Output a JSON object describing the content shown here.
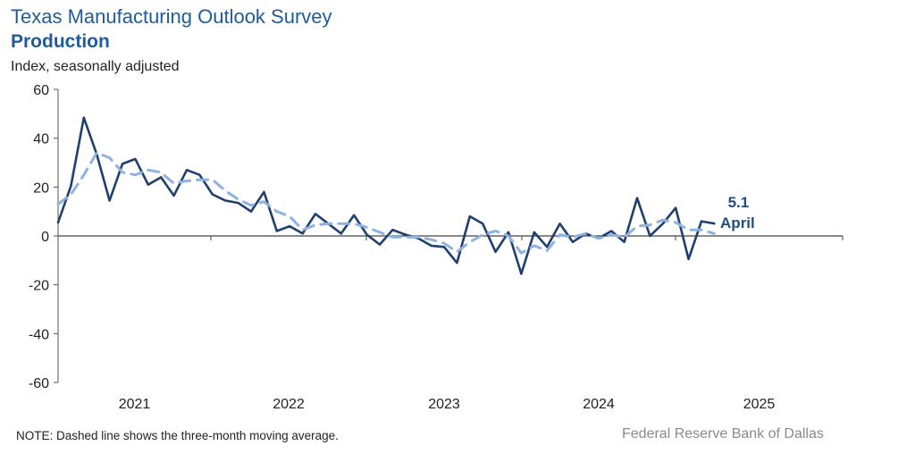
{
  "header": {
    "title": "Texas Manufacturing Outlook Survey",
    "subtitle": "Production",
    "ylabel": "Index, seasonally adjusted"
  },
  "footer": {
    "note": "NOTE: Dashed line shows the three-month  moving average.",
    "source": "Federal Reserve Bank of Dallas"
  },
  "chart_data": {
    "type": "line",
    "title": "Texas Manufacturing Outlook Survey — Production",
    "ylabel": "Index, seasonally adjusted",
    "xlabel": "",
    "ylim": [
      -60,
      60
    ],
    "yticks": [
      60,
      40,
      20,
      0,
      -20,
      -40,
      -60
    ],
    "xtick_labels": [
      "2021",
      "2022",
      "2023",
      "2024",
      "2025"
    ],
    "x_start": "Dec 2020",
    "x_end": "Apr 2025",
    "grid": false,
    "annotations": [
      {
        "text": "5.1",
        "target": "last-point"
      },
      {
        "text": "April",
        "target": "last-point"
      }
    ],
    "series": [
      {
        "name": "Production index",
        "style": "solid",
        "color": "#1f3f6e",
        "values": [
          5.5,
          20.5,
          48.4,
          33.5,
          14.5,
          29.5,
          31.5,
          21.0,
          24.0,
          16.5,
          27.0,
          25.0,
          17.0,
          14.5,
          13.5,
          10.0,
          18.0,
          2.0,
          4.0,
          1.0,
          9.0,
          5.0,
          1.0,
          8.5,
          0.5,
          -3.5,
          2.5,
          0.5,
          -1.0,
          -4.0,
          -4.5,
          -11.0,
          8.0,
          5.0,
          -6.5,
          1.5,
          -15.5,
          1.5,
          -4.5,
          5.0,
          -2.5,
          1.0,
          -1.0,
          2.0,
          -2.5,
          15.5,
          0.0,
          5.0,
          11.5,
          -9.5,
          6.0,
          5.1
        ]
      },
      {
        "name": "Three-month moving average",
        "style": "dashed",
        "color": "#8fb2e0",
        "values": [
          13.0,
          17.0,
          25.0,
          34.0,
          32.0,
          26.0,
          25.0,
          27.0,
          26.0,
          21.5,
          22.5,
          23.0,
          23.0,
          18.5,
          15.0,
          12.5,
          14.0,
          10.0,
          8.0,
          2.5,
          4.5,
          5.0,
          5.0,
          5.0,
          3.5,
          1.5,
          -0.5,
          -0.5,
          -0.5,
          -1.5,
          -3.0,
          -6.5,
          -2.5,
          0.5,
          2.0,
          0.0,
          -7.0,
          -4.0,
          -6.0,
          0.5,
          -0.5,
          1.0,
          -1.0,
          0.5,
          -0.5,
          4.0,
          4.5,
          6.5,
          5.5,
          2.5,
          2.5,
          1.0
        ]
      }
    ]
  }
}
